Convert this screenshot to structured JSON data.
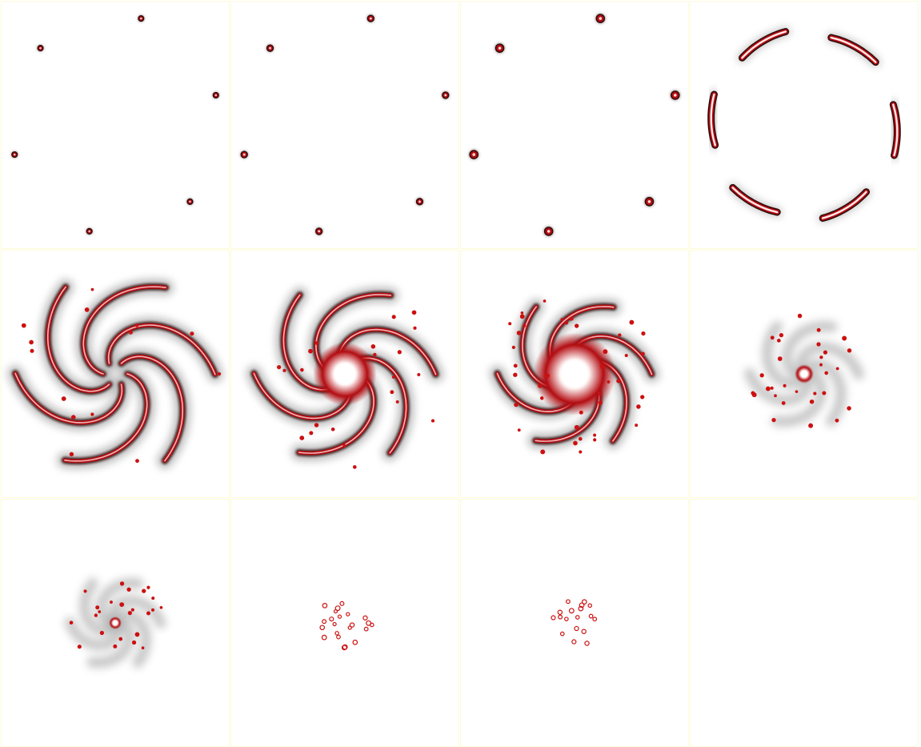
{
  "sheet": {
    "layout": {
      "columns": 4,
      "rows": 3
    },
    "colors": {
      "background": "#ffffff",
      "frame_border": "#fdfbd8",
      "arm_core": "#b30d12",
      "arm_edge": "#2b0b0b",
      "arm_shadow": "#8a8a8a",
      "glow": "#fff6f6",
      "particle": "#cc1010"
    },
    "frames": [
      {
        "stage": "blobs",
        "count": 6,
        "orbit": 0.46,
        "size": 0.012
      },
      {
        "stage": "blobs",
        "count": 6,
        "orbit": 0.46,
        "size": 0.014
      },
      {
        "stage": "blobs",
        "count": 6,
        "orbit": 0.46,
        "size": 0.018
      },
      {
        "stage": "arcs",
        "count": 6,
        "orbit": 0.41
      },
      {
        "stage": "spiral",
        "arms": 6,
        "radius": 0.44,
        "core": 0.0,
        "particles": 14
      },
      {
        "stage": "spiral",
        "arms": 6,
        "radius": 0.4,
        "core": 0.1,
        "particles": 22
      },
      {
        "stage": "spiral",
        "arms": 6,
        "radius": 0.34,
        "core": 0.13,
        "particles": 40
      },
      {
        "stage": "faint-spiral",
        "arms": 6,
        "radius": 0.24,
        "core": 0.03,
        "particles": 30
      },
      {
        "stage": "faint-spiral",
        "arms": 6,
        "radius": 0.2,
        "core": 0.02,
        "particles": 24
      },
      {
        "stage": "dots",
        "particles": 22,
        "radius": 0.12
      },
      {
        "stage": "dots",
        "particles": 18,
        "radius": 0.12
      },
      {
        "stage": "empty"
      }
    ]
  }
}
